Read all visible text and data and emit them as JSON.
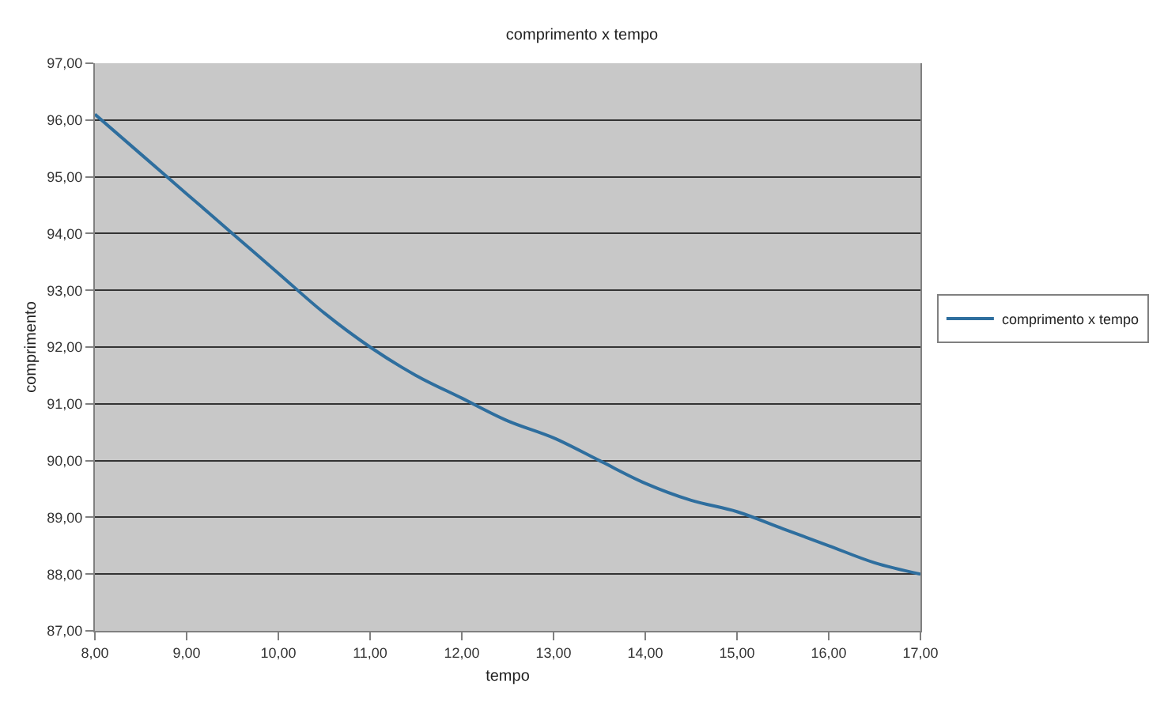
{
  "chart_data": {
    "type": "line",
    "title": "comprimento x tempo",
    "xlabel": "tempo",
    "ylabel": "comprimento",
    "x": [
      8,
      8.5,
      9,
      9.5,
      10,
      10.5,
      11,
      11.5,
      12,
      12.5,
      13,
      13.5,
      14,
      14.5,
      15,
      15.5,
      16,
      16.5,
      17
    ],
    "series": [
      {
        "name": "comprimento x tempo",
        "color": "#2e6e9e",
        "values": [
          96.1,
          95.4,
          94.7,
          94.0,
          93.3,
          92.6,
          92.0,
          91.5,
          91.1,
          90.7,
          90.4,
          90.0,
          89.6,
          89.3,
          89.1,
          88.8,
          88.5,
          88.2,
          88.0
        ]
      }
    ],
    "xlim": [
      8,
      17
    ],
    "ylim": [
      87,
      97
    ],
    "xticks": [
      {
        "value": 8,
        "label": "8,00"
      },
      {
        "value": 9,
        "label": "9,00"
      },
      {
        "value": 10,
        "label": "10,00"
      },
      {
        "value": 11,
        "label": "11,00"
      },
      {
        "value": 12,
        "label": "12,00"
      },
      {
        "value": 13,
        "label": "13,00"
      },
      {
        "value": 14,
        "label": "14,00"
      },
      {
        "value": 15,
        "label": "15,00"
      },
      {
        "value": 16,
        "label": "16,00"
      },
      {
        "value": 17,
        "label": "17,00"
      }
    ],
    "yticks": [
      {
        "value": 87,
        "label": "87,00"
      },
      {
        "value": 88,
        "label": "88,00"
      },
      {
        "value": 89,
        "label": "89,00"
      },
      {
        "value": 90,
        "label": "90,00"
      },
      {
        "value": 91,
        "label": "91,00"
      },
      {
        "value": 92,
        "label": "92,00"
      },
      {
        "value": 93,
        "label": "93,00"
      },
      {
        "value": 94,
        "label": "94,00"
      },
      {
        "value": 95,
        "label": "95,00"
      },
      {
        "value": 96,
        "label": "96,00"
      },
      {
        "value": 97,
        "label": "97,00"
      }
    ],
    "grid": "y",
    "legend": "right",
    "marker": "none",
    "line_style": "solid"
  }
}
